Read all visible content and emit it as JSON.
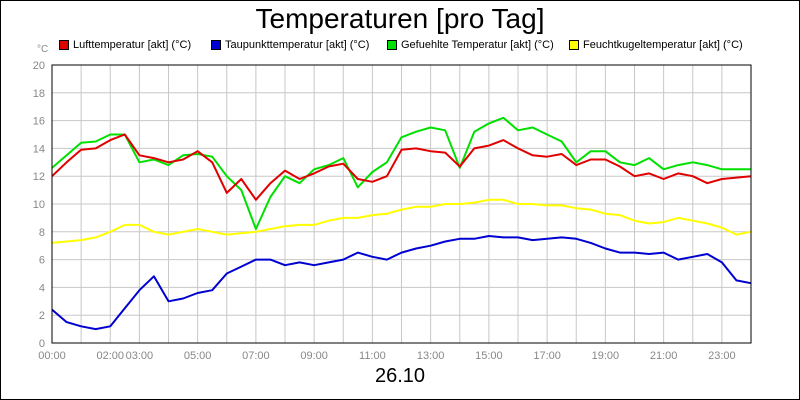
{
  "title": "Temperaturen [pro Tag]",
  "x_caption": "26.10",
  "colors": {
    "lufttemperatur": "#e00000",
    "taupunkttemperatur": "#0000d0",
    "gefuehlte": "#00e000",
    "feuchtkugel": "#ffff00",
    "grid": "#c8c8c8"
  },
  "chart_data": {
    "type": "line",
    "title": "Temperaturen [pro Tag]",
    "xlabel": "26.10",
    "ylabel": "°C",
    "ylim": [
      0,
      20
    ],
    "xlim": [
      "00:00",
      "24:00"
    ],
    "grid": true,
    "legend": "top",
    "y_ticks": [
      "0",
      "2",
      "4",
      "6",
      "8",
      "10",
      "12",
      "14",
      "16",
      "18",
      "20"
    ],
    "x_ticks": [
      "00:00",
      "02:00",
      "03:00",
      "05:00",
      "07:00",
      "09:00",
      "11:00",
      "13:00",
      "15:00",
      "17:00",
      "19:00",
      "21:00",
      "23:00"
    ],
    "x": [
      "00:00",
      "00:30",
      "01:00",
      "01:30",
      "02:00",
      "02:30",
      "03:00",
      "03:30",
      "04:00",
      "04:30",
      "05:00",
      "05:30",
      "06:00",
      "06:30",
      "07:00",
      "07:30",
      "08:00",
      "08:30",
      "09:00",
      "09:30",
      "10:00",
      "10:30",
      "11:00",
      "11:30",
      "12:00",
      "12:30",
      "13:00",
      "13:30",
      "14:00",
      "14:30",
      "15:00",
      "15:30",
      "16:00",
      "16:30",
      "17:00",
      "17:30",
      "18:00",
      "18:30",
      "19:00",
      "19:30",
      "20:00",
      "20:30",
      "21:00",
      "21:30",
      "22:00",
      "22:30",
      "23:00",
      "23:30",
      "24:00"
    ],
    "series": [
      {
        "name": "Lufttemperatur [akt] (°C)",
        "values": [
          12.0,
          13.0,
          13.9,
          14.0,
          14.6,
          15.0,
          13.5,
          13.3,
          13.0,
          13.2,
          13.8,
          13.0,
          10.8,
          11.8,
          10.3,
          11.5,
          12.4,
          11.8,
          12.2,
          12.7,
          12.9,
          11.8,
          11.6,
          12.0,
          13.9,
          14.0,
          13.8,
          13.7,
          12.7,
          14.0,
          14.2,
          14.6,
          14.0,
          13.5,
          13.4,
          13.6,
          12.8,
          13.2,
          13.2,
          12.7,
          12.0,
          12.2,
          11.8,
          12.2,
          12.0,
          11.5,
          11.8,
          11.9,
          12.0
        ]
      },
      {
        "name": "Taupunkttemperatur [akt] (°C)",
        "values": [
          2.4,
          1.5,
          1.2,
          1.0,
          1.2,
          2.5,
          3.8,
          4.8,
          3.0,
          3.2,
          3.6,
          3.8,
          5.0,
          5.5,
          6.0,
          6.0,
          5.6,
          5.8,
          5.6,
          5.8,
          6.0,
          6.5,
          6.2,
          6.0,
          6.5,
          6.8,
          7.0,
          7.3,
          7.5,
          7.5,
          7.7,
          7.6,
          7.6,
          7.4,
          7.5,
          7.6,
          7.5,
          7.2,
          6.8,
          6.5,
          6.5,
          6.4,
          6.5,
          6.0,
          6.2,
          6.4,
          5.8,
          4.5,
          4.3
        ]
      },
      {
        "name": "Gefuehlte Temperatur [akt] (°C)",
        "values": [
          12.6,
          13.5,
          14.4,
          14.5,
          15.0,
          15.0,
          13.0,
          13.2,
          12.8,
          13.5,
          13.6,
          13.4,
          12.0,
          11.0,
          8.2,
          10.5,
          12.0,
          11.5,
          12.5,
          12.8,
          13.3,
          11.2,
          12.3,
          13.0,
          14.8,
          15.2,
          15.5,
          15.3,
          12.6,
          15.2,
          15.8,
          16.2,
          15.3,
          15.5,
          15.0,
          14.5,
          13.0,
          13.8,
          13.8,
          13.0,
          12.8,
          13.3,
          12.5,
          12.8,
          13.0,
          12.8,
          12.5,
          12.5,
          12.5
        ]
      },
      {
        "name": "Feuchtkugeltemperatur [akt] (°C)",
        "values": [
          7.2,
          7.3,
          7.4,
          7.6,
          8.0,
          8.5,
          8.5,
          8.0,
          7.8,
          8.0,
          8.2,
          8.0,
          7.8,
          7.9,
          8.0,
          8.2,
          8.4,
          8.5,
          8.5,
          8.8,
          9.0,
          9.0,
          9.2,
          9.3,
          9.6,
          9.8,
          9.8,
          10.0,
          10.0,
          10.1,
          10.3,
          10.3,
          10.0,
          10.0,
          9.9,
          9.9,
          9.7,
          9.6,
          9.3,
          9.2,
          8.8,
          8.6,
          8.7,
          9.0,
          8.8,
          8.6,
          8.3,
          7.8,
          8.0
        ]
      }
    ]
  }
}
